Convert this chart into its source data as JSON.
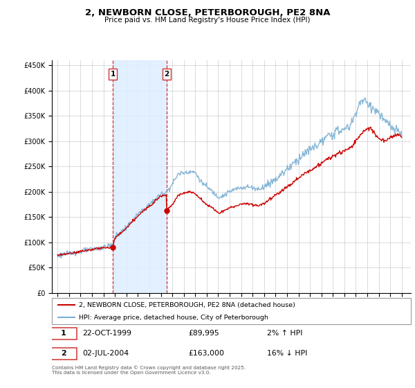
{
  "title": "2, NEWBORN CLOSE, PETERBOROUGH, PE2 8NA",
  "subtitle": "Price paid vs. HM Land Registry's House Price Index (HPI)",
  "legend_line1": "2, NEWBORN CLOSE, PETERBOROUGH, PE2 8NA (detached house)",
  "legend_line2": "HPI: Average price, detached house, City of Peterborough",
  "annotation_text": "Contains HM Land Registry data © Crown copyright and database right 2025.\nThis data is licensed under the Open Government Licence v3.0.",
  "table_rows": [
    {
      "num": "1",
      "date": "22-OCT-1999",
      "price": "£89,995",
      "hpi": "2% ↑ HPI"
    },
    {
      "num": "2",
      "date": "02-JUL-2004",
      "price": "£163,000",
      "hpi": "16% ↓ HPI"
    }
  ],
  "sale1_year": 1999.81,
  "sale1_price": 89995,
  "sale2_year": 2004.5,
  "sale2_price": 163000,
  "vline1_year": 1999.81,
  "vline2_year": 2004.5,
  "red_color": "#cc0000",
  "blue_color": "#7bafd4",
  "vline_color": "#cc3333",
  "shade_color": "#ddeeff",
  "ylim": [
    0,
    460000
  ],
  "yticks": [
    0,
    50000,
    100000,
    150000,
    200000,
    250000,
    300000,
    350000,
    400000,
    450000
  ],
  "xlim_start": 1994.5,
  "xlim_end": 2025.8,
  "xticks": [
    1995,
    1996,
    1997,
    1998,
    1999,
    2000,
    2001,
    2002,
    2003,
    2004,
    2005,
    2006,
    2007,
    2008,
    2009,
    2010,
    2011,
    2012,
    2013,
    2014,
    2015,
    2016,
    2017,
    2018,
    2019,
    2020,
    2021,
    2022,
    2023,
    2024,
    2025
  ]
}
